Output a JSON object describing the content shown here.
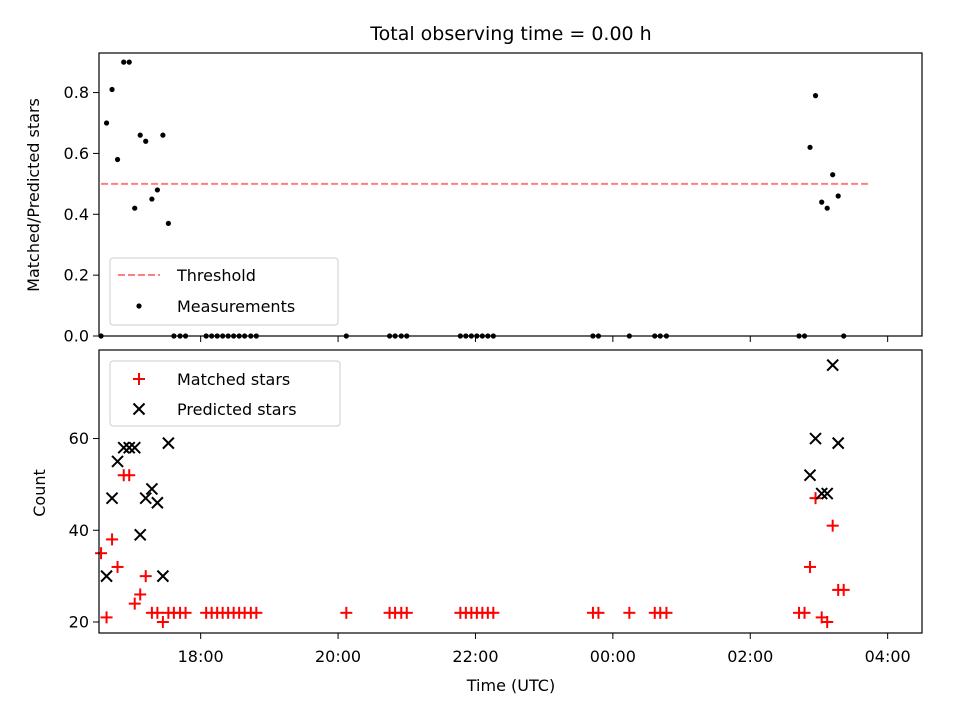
{
  "chart_data": {
    "title": "Total observing time = 0.00 h",
    "xlabel": "Time (UTC)",
    "x_unit": "hours since 16:00 UTC",
    "xlim": [
      0.52,
      12.5
    ],
    "xticks": [
      {
        "value": 2,
        "label": "18:00"
      },
      {
        "value": 4,
        "label": "20:00"
      },
      {
        "value": 6,
        "label": "22:00"
      },
      {
        "value": 8,
        "label": "00:00"
      },
      {
        "value": 10,
        "label": "02:00"
      },
      {
        "value": 12,
        "label": "04:00"
      }
    ],
    "panels": [
      {
        "type": "scatter",
        "ylabel": "Matched/Predicted stars",
        "ylim": [
          0,
          0.93
        ],
        "yticks": [
          {
            "value": 0.0,
            "label": "0.0"
          },
          {
            "value": 0.2,
            "label": "0.2"
          },
          {
            "value": 0.4,
            "label": "0.4"
          },
          {
            "value": 0.6,
            "label": "0.6"
          },
          {
            "value": 0.8,
            "label": "0.8"
          }
        ],
        "legend": {
          "position": "lower-left",
          "entries": [
            {
              "label": "Threshold",
              "key": "threshold"
            },
            {
              "label": "Measurements",
              "key": "measurements"
            }
          ]
        },
        "threshold": {
          "name": "Threshold",
          "value": 0.5,
          "x_start": 0.55,
          "x_end": 11.72,
          "color": "#ff7f7f"
        },
        "measurements": {
          "name": "Measurements",
          "color": "#000000",
          "points": [
            [
              0.55,
              0.0
            ],
            [
              0.63,
              0.7
            ],
            [
              0.71,
              0.81
            ],
            [
              0.79,
              0.58
            ],
            [
              0.88,
              0.9
            ],
            [
              0.96,
              0.9
            ],
            [
              1.04,
              0.42
            ],
            [
              1.12,
              0.66
            ],
            [
              1.2,
              0.64
            ],
            [
              1.29,
              0.45
            ],
            [
              1.37,
              0.48
            ],
            [
              1.45,
              0.66
            ],
            [
              1.53,
              0.37
            ],
            [
              1.61,
              0.0
            ],
            [
              1.7,
              0.0
            ],
            [
              1.78,
              0.0
            ],
            [
              2.08,
              0.0
            ],
            [
              2.16,
              0.0
            ],
            [
              2.24,
              0.0
            ],
            [
              2.32,
              0.0
            ],
            [
              2.4,
              0.0
            ],
            [
              2.48,
              0.0
            ],
            [
              2.56,
              0.0
            ],
            [
              2.64,
              0.0
            ],
            [
              2.73,
              0.0
            ],
            [
              2.81,
              0.0
            ],
            [
              4.12,
              0.0
            ],
            [
              4.75,
              0.0
            ],
            [
              4.83,
              0.0
            ],
            [
              4.92,
              0.0
            ],
            [
              5.0,
              0.0
            ],
            [
              5.78,
              0.0
            ],
            [
              5.86,
              0.0
            ],
            [
              5.94,
              0.0
            ],
            [
              6.02,
              0.0
            ],
            [
              6.1,
              0.0
            ],
            [
              6.18,
              0.0
            ],
            [
              6.26,
              0.0
            ],
            [
              7.71,
              0.0
            ],
            [
              7.79,
              0.0
            ],
            [
              8.24,
              0.0
            ],
            [
              8.61,
              0.0
            ],
            [
              8.69,
              0.0
            ],
            [
              8.78,
              0.0
            ],
            [
              10.71,
              0.0
            ],
            [
              10.79,
              0.0
            ],
            [
              10.87,
              0.62
            ],
            [
              10.95,
              0.79
            ],
            [
              11.04,
              0.44
            ],
            [
              11.12,
              0.42
            ],
            [
              11.2,
              0.53
            ],
            [
              11.28,
              0.46
            ],
            [
              11.36,
              0.0
            ]
          ]
        }
      },
      {
        "type": "scatter",
        "ylabel": "Count",
        "ylim": [
          17.6,
          79.3
        ],
        "yticks": [
          {
            "value": 20,
            "label": "20"
          },
          {
            "value": 40,
            "label": "40"
          },
          {
            "value": 60,
            "label": "60"
          }
        ],
        "legend": {
          "position": "top-left",
          "entries": [
            {
              "label": "Matched stars",
              "key": "matched"
            },
            {
              "label": "Predicted stars",
              "key": "predicted"
            }
          ]
        },
        "matched": {
          "name": "Matched stars",
          "color": "#ff0000",
          "points": [
            [
              0.55,
              35
            ],
            [
              0.63,
              21
            ],
            [
              0.71,
              38
            ],
            [
              0.79,
              32
            ],
            [
              0.88,
              52
            ],
            [
              0.96,
              52
            ],
            [
              1.04,
              24
            ],
            [
              1.12,
              26
            ],
            [
              1.2,
              30
            ],
            [
              1.29,
              22
            ],
            [
              1.37,
              22
            ],
            [
              1.45,
              20
            ],
            [
              1.53,
              22
            ],
            [
              1.61,
              22
            ],
            [
              1.7,
              22
            ],
            [
              1.78,
              22
            ],
            [
              2.08,
              22
            ],
            [
              2.16,
              22
            ],
            [
              2.24,
              22
            ],
            [
              2.32,
              22
            ],
            [
              2.4,
              22
            ],
            [
              2.48,
              22
            ],
            [
              2.56,
              22
            ],
            [
              2.64,
              22
            ],
            [
              2.73,
              22
            ],
            [
              2.81,
              22
            ],
            [
              4.12,
              22
            ],
            [
              4.75,
              22
            ],
            [
              4.83,
              22
            ],
            [
              4.92,
              22
            ],
            [
              5.0,
              22
            ],
            [
              5.78,
              22
            ],
            [
              5.86,
              22
            ],
            [
              5.94,
              22
            ],
            [
              6.02,
              22
            ],
            [
              6.1,
              22
            ],
            [
              6.18,
              22
            ],
            [
              6.26,
              22
            ],
            [
              7.71,
              22
            ],
            [
              7.79,
              22
            ],
            [
              8.24,
              22
            ],
            [
              8.61,
              22
            ],
            [
              8.69,
              22
            ],
            [
              8.78,
              22
            ],
            [
              10.71,
              22
            ],
            [
              10.79,
              22
            ],
            [
              10.87,
              32
            ],
            [
              10.95,
              47
            ],
            [
              11.04,
              21
            ],
            [
              11.12,
              20
            ],
            [
              11.2,
              41
            ],
            [
              11.28,
              27
            ],
            [
              11.36,
              27
            ]
          ]
        },
        "predicted": {
          "name": "Predicted stars",
          "color": "#000000",
          "points": [
            [
              0.63,
              30
            ],
            [
              0.71,
              47
            ],
            [
              0.79,
              55
            ],
            [
              0.88,
              58
            ],
            [
              0.96,
              58
            ],
            [
              1.04,
              58
            ],
            [
              1.12,
              39
            ],
            [
              1.2,
              47
            ],
            [
              1.29,
              49
            ],
            [
              1.37,
              46
            ],
            [
              1.45,
              30
            ],
            [
              1.53,
              59
            ],
            [
              10.87,
              52
            ],
            [
              10.95,
              60
            ],
            [
              11.04,
              48
            ],
            [
              11.12,
              48
            ],
            [
              11.2,
              76
            ],
            [
              11.28,
              59
            ]
          ]
        }
      }
    ]
  }
}
